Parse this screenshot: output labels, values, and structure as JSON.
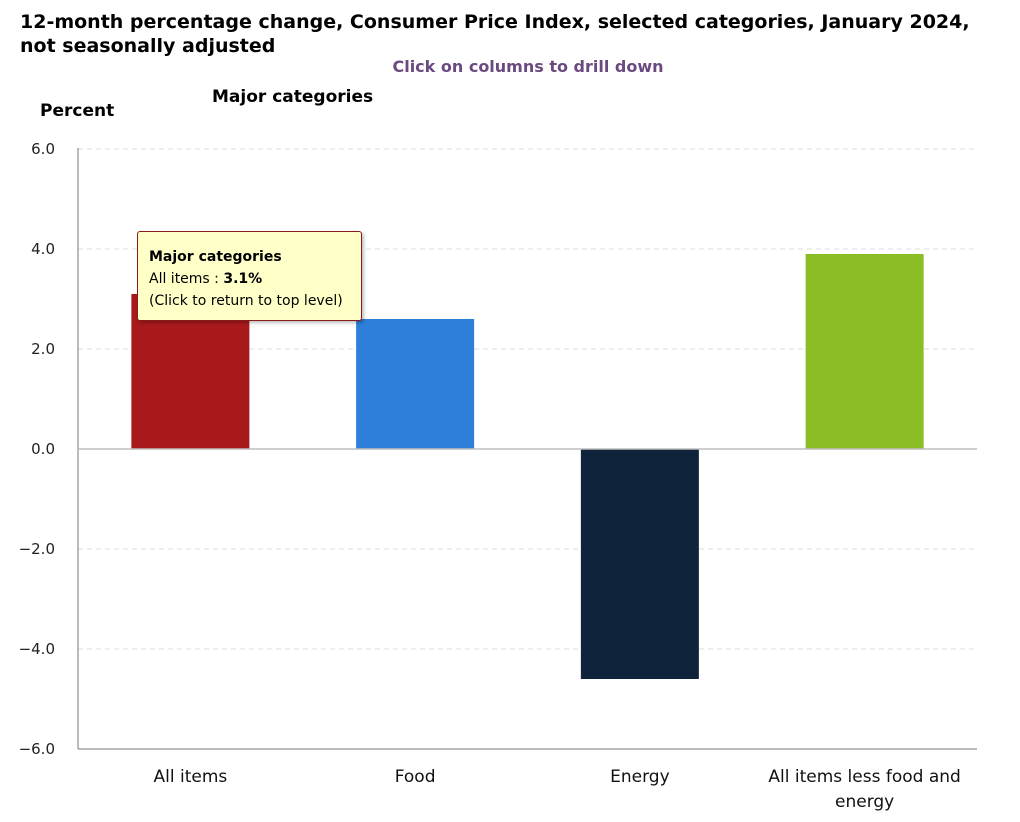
{
  "chart_data": {
    "type": "bar",
    "title": "12-month percentage change, Consumer Price Index, selected categories, January 2024, not seasonally adjusted",
    "subtitle": "Click on columns to drill down",
    "ylabel": "Percent",
    "legend_title": "Major categories",
    "ylim": [
      -6,
      6
    ],
    "yticks": [
      "6.0",
      "4.0",
      "2.0",
      "0.0",
      "−2.0",
      "−4.0",
      "−6.0"
    ],
    "ytick_values": [
      6,
      4,
      2,
      0,
      -2,
      -4,
      -6
    ],
    "grid": true,
    "categories": [
      "All items",
      "Food",
      "Energy",
      "All items less food and energy"
    ],
    "category_lines": [
      [
        "All items"
      ],
      [
        "Food"
      ],
      [
        "Energy"
      ],
      [
        "All items less food and",
        "energy"
      ]
    ],
    "values": [
      3.1,
      2.6,
      -4.6,
      3.9
    ],
    "colors": [
      "#a8191c",
      "#2e7fd9",
      "#0f243b",
      "#8bbd25"
    ],
    "tooltip": {
      "header": "Major categories",
      "label": "All items : ",
      "value": "3.1%",
      "note": "(Click to return to top level)"
    }
  }
}
